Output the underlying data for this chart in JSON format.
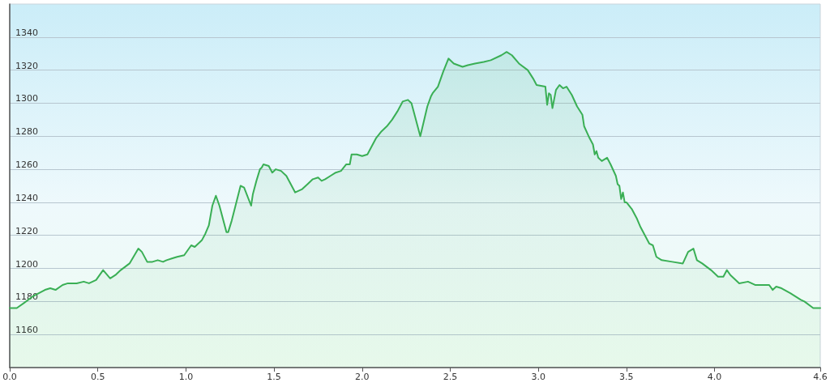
{
  "chart_data": {
    "type": "area",
    "color": "#3aaf55",
    "x": [
      0,
      0.04,
      0.08,
      0.13,
      0.2,
      0.23,
      0.26,
      0.3,
      0.33,
      0.38,
      0.42,
      0.45,
      0.49,
      0.53,
      0.57,
      0.6,
      0.63,
      0.68,
      0.73,
      0.75,
      0.78,
      0.81,
      0.84,
      0.87,
      0.89,
      0.92,
      0.95,
      0.99,
      1.03,
      1.05,
      1.09,
      1.11,
      1.13,
      1.15,
      1.17,
      1.19,
      1.23,
      1.24,
      1.26,
      1.31,
      1.33,
      1.37,
      1.38,
      1.4,
      1.42,
      1.43,
      1.44,
      1.47,
      1.49,
      1.51,
      1.54,
      1.57,
      1.6,
      1.62,
      1.66,
      1.69,
      1.72,
      1.75,
      1.77,
      1.79,
      1.82,
      1.85,
      1.88,
      1.91,
      1.93,
      1.94,
      1.97,
      2.0,
      2.03,
      2.05,
      2.08,
      2.11,
      2.14,
      2.17,
      2.2,
      2.23,
      2.26,
      2.28,
      2.3,
      2.33,
      2.35,
      2.37,
      2.39,
      2.4,
      2.43,
      2.46,
      2.49,
      2.52,
      2.57,
      2.6,
      2.64,
      2.69,
      2.73,
      2.79,
      2.82,
      2.85,
      2.89,
      2.94,
      2.97,
      2.99,
      3.04,
      3.05,
      3.06,
      3.07,
      3.08,
      3.1,
      3.12,
      3.14,
      3.16,
      3.19,
      3.22,
      3.25,
      3.26,
      3.29,
      3.31,
      3.32,
      3.33,
      3.34,
      3.36,
      3.39,
      3.41,
      3.44,
      3.45,
      3.46,
      3.47,
      3.48,
      3.49,
      3.5,
      3.53,
      3.56,
      3.58,
      3.63,
      3.65,
      3.67,
      3.7,
      3.76,
      3.82,
      3.85,
      3.88,
      3.9,
      3.93,
      3.98,
      4.02,
      4.05,
      4.07,
      4.09,
      4.14,
      4.19,
      4.23,
      4.31,
      4.33,
      4.35,
      4.38,
      4.43,
      4.49,
      4.51,
      4.56,
      4.6
    ],
    "values": [
      1176,
      1176,
      1179,
      1183,
      1187,
      1188,
      1187,
      1190,
      1191,
      1191,
      1192,
      1191,
      1193,
      1199,
      1194,
      1196,
      1199,
      1203,
      1212,
      1210,
      1204,
      1204,
      1205,
      1204,
      1205,
      1206,
      1207,
      1208,
      1214,
      1213,
      1217,
      1221,
      1226,
      1238,
      1244,
      1238,
      1222,
      1222,
      1229,
      1250,
      1249,
      1238,
      1245,
      1253,
      1260,
      1261,
      1263,
      1262,
      1258,
      1260,
      1259,
      1256,
      1250,
      1246,
      1248,
      1251,
      1254,
      1255,
      1253,
      1254,
      1256,
      1258,
      1259,
      1263,
      1263,
      1269,
      1269,
      1268,
      1269,
      1273,
      1279,
      1283,
      1286,
      1290,
      1295,
      1301,
      1302,
      1300,
      1292,
      1280,
      1289,
      1298,
      1304,
      1306,
      1310,
      1319,
      1327,
      1324,
      1322,
      1323,
      1324,
      1325,
      1326,
      1329,
      1331,
      1329,
      1324,
      1320,
      1315,
      1311,
      1310,
      1299,
      1306,
      1305,
      1297,
      1308,
      1311,
      1309,
      1310,
      1305,
      1298,
      1293,
      1286,
      1279,
      1275,
      1269,
      1271,
      1267,
      1265,
      1267,
      1263,
      1256,
      1251,
      1250,
      1242,
      1246,
      1240,
      1240,
      1236,
      1230,
      1225,
      1215,
      1214,
      1207,
      1205,
      1204,
      1203,
      1210,
      1212,
      1205,
      1203,
      1199,
      1195,
      1195,
      1199,
      1196,
      1191,
      1192,
      1190,
      1190,
      1187,
      1189,
      1188,
      1185,
      1181,
      1180,
      1176,
      1176
    ],
    "xlim": [
      0,
      4.6
    ],
    "xticks": [
      {
        "value": 0,
        "label": "0.0"
      },
      0.5,
      {
        "value": 1,
        "label": "1.0"
      },
      1.5,
      {
        "value": 2,
        "label": "2.0"
      },
      2.5,
      {
        "value": 3,
        "label": "3.0"
      },
      3.5,
      {
        "value": 4,
        "label": "4.0"
      },
      4.6
    ],
    "ylim": [
      1140,
      1360
    ],
    "yticks": [
      1160,
      1180,
      1200,
      1220,
      1240,
      1260,
      1280,
      1300,
      1320,
      1340
    ],
    "grid": "y"
  }
}
